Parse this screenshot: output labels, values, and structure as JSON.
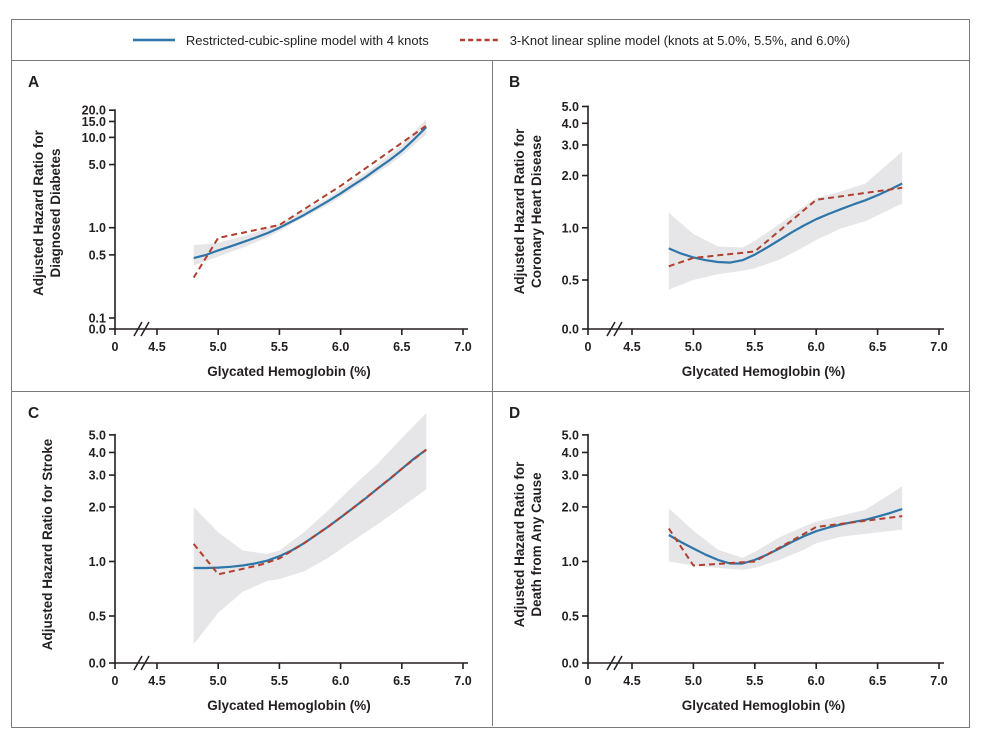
{
  "figure": {
    "legend": [
      {
        "label": "Restricted-cubic-spline model with 4 knots",
        "color": "#2e76a9",
        "style": "solid"
      },
      {
        "label": "3-Knot linear spline model (knots at 5.0%, 5.5%, and 6.0%)",
        "color": "#b2402f",
        "style": "dashed"
      }
    ],
    "colors": {
      "spline_blue": "#2e76a9",
      "spline_red": "#b2402f",
      "ci_band": "#e6e6e8",
      "axis": "#231f20",
      "frame": "#797a7c",
      "background": "#ffffff"
    }
  },
  "chart_data": [
    {
      "type": "line",
      "panel_label": "A",
      "ylabel_lines": [
        "Adjusted Hazard Ratio for",
        "Diagnosed Diabetes"
      ],
      "xlabel": "Glycated Hemoglobin (%)",
      "yscale": "log",
      "ylim": [
        0.1,
        28
      ],
      "x_axis_break": true,
      "yticks": [
        {
          "v": 20,
          "label": "20.0"
        },
        {
          "v": 15,
          "label": "15.0"
        },
        {
          "v": 10,
          "label": "10.0"
        },
        {
          "v": 5,
          "label": "5.0"
        },
        {
          "v": 1,
          "label": "1.0"
        },
        {
          "v": 0.5,
          "label": "0.5"
        },
        {
          "v": 0.1,
          "label": "0.1"
        },
        {
          "v": 0,
          "label": "0.0"
        }
      ],
      "xticks": [
        {
          "v": 0,
          "label": "0"
        },
        {
          "v": 4.5,
          "label": "4.5"
        },
        {
          "v": 5.0,
          "label": "5.0"
        },
        {
          "v": 5.5,
          "label": "5.5"
        },
        {
          "v": 6.0,
          "label": "6.0"
        },
        {
          "v": 6.5,
          "label": "6.5"
        },
        {
          "v": 7.0,
          "label": "7.0"
        }
      ],
      "series": [
        {
          "name": "Restricted-cubic-spline model with 4 knots",
          "style": "solid",
          "x": [
            4.8,
            4.9,
            5.0,
            5.1,
            5.2,
            5.3,
            5.4,
            5.5,
            5.6,
            5.7,
            5.8,
            5.9,
            6.0,
            6.1,
            6.2,
            6.3,
            6.4,
            6.5,
            6.6,
            6.7
          ],
          "y": [
            0.46,
            0.5,
            0.56,
            0.62,
            0.69,
            0.77,
            0.87,
            1.0,
            1.17,
            1.38,
            1.65,
            1.98,
            2.4,
            2.95,
            3.6,
            4.5,
            5.6,
            7.1,
            9.5,
            13.0
          ]
        },
        {
          "name": "3-Knot linear spline model",
          "style": "dashed",
          "x": [
            4.8,
            5.0,
            5.5,
            6.0,
            6.7
          ],
          "y": [
            0.28,
            0.77,
            1.07,
            2.9,
            13.5
          ]
        }
      ],
      "ci_band": {
        "x": [
          4.8,
          5.0,
          5.2,
          5.4,
          5.5,
          5.7,
          5.9,
          6.0,
          6.2,
          6.4,
          6.5,
          6.7
        ],
        "lower": [
          0.38,
          0.48,
          0.6,
          0.78,
          0.92,
          1.3,
          1.8,
          2.2,
          3.3,
          5.0,
          6.3,
          10.8
        ],
        "upper": [
          0.64,
          0.68,
          0.8,
          0.98,
          1.1,
          1.55,
          2.15,
          2.7,
          4.0,
          6.4,
          8.2,
          16.0
        ]
      }
    },
    {
      "type": "line",
      "panel_label": "B",
      "ylabel_lines": [
        "Adjusted Hazard Ratio for",
        "Coronary Heart Disease"
      ],
      "xlabel": "Glycated Hemoglobin (%)",
      "yscale": "log",
      "ylim": [
        0.5,
        5.9
      ],
      "x_axis_break": true,
      "yticks": [
        {
          "v": 5,
          "label": "5.0"
        },
        {
          "v": 4,
          "label": "4.0"
        },
        {
          "v": 3,
          "label": "3.0"
        },
        {
          "v": 2,
          "label": "2.0"
        },
        {
          "v": 1,
          "label": "1.0"
        },
        {
          "v": 0.5,
          "label": "0.5"
        },
        {
          "v": 0,
          "label": "0.0"
        }
      ],
      "xticks": [
        {
          "v": 0,
          "label": "0"
        },
        {
          "v": 4.5,
          "label": "4.5"
        },
        {
          "v": 5.0,
          "label": "5.0"
        },
        {
          "v": 5.5,
          "label": "5.5"
        },
        {
          "v": 6.0,
          "label": "6.0"
        },
        {
          "v": 6.5,
          "label": "6.5"
        },
        {
          "v": 7.0,
          "label": "7.0"
        }
      ],
      "series": [
        {
          "name": "Restricted-cubic-spline model with 4 knots",
          "style": "solid",
          "x": [
            4.8,
            4.9,
            5.0,
            5.1,
            5.2,
            5.3,
            5.4,
            5.5,
            5.6,
            5.7,
            5.8,
            5.9,
            6.0,
            6.1,
            6.2,
            6.3,
            6.4,
            6.5,
            6.6,
            6.7
          ],
          "y": [
            0.76,
            0.71,
            0.675,
            0.65,
            0.635,
            0.63,
            0.65,
            0.7,
            0.77,
            0.85,
            0.94,
            1.03,
            1.12,
            1.2,
            1.28,
            1.36,
            1.44,
            1.54,
            1.66,
            1.8
          ]
        },
        {
          "name": "3-Knot linear spline model",
          "style": "dashed",
          "x": [
            4.8,
            5.0,
            5.5,
            6.0,
            6.7
          ],
          "y": [
            0.6,
            0.67,
            0.73,
            1.45,
            1.7
          ]
        }
      ],
      "ci_band": {
        "x": [
          4.8,
          5.0,
          5.2,
          5.4,
          5.5,
          5.7,
          5.9,
          6.0,
          6.2,
          6.4,
          6.7
        ],
        "lower": [
          0.44,
          0.5,
          0.54,
          0.565,
          0.585,
          0.655,
          0.775,
          0.85,
          0.99,
          1.09,
          1.38
        ],
        "upper": [
          1.22,
          0.92,
          0.78,
          0.77,
          0.84,
          1.05,
          1.33,
          1.48,
          1.62,
          1.8,
          2.75
        ]
      }
    },
    {
      "type": "line",
      "panel_label": "C",
      "ylabel_lines": [
        "Adjusted Hazard Ratio for Stroke"
      ],
      "xlabel": "Glycated Hemoglobin (%)",
      "yscale": "log",
      "ylim": [
        0.5,
        5.6
      ],
      "x_axis_break": true,
      "yticks": [
        {
          "v": 5,
          "label": "5.0"
        },
        {
          "v": 4,
          "label": "4.0"
        },
        {
          "v": 3,
          "label": "3.0"
        },
        {
          "v": 2,
          "label": "2.0"
        },
        {
          "v": 1,
          "label": "1.0"
        },
        {
          "v": 0.5,
          "label": "0.5"
        },
        {
          "v": 0,
          "label": "0.0"
        }
      ],
      "xticks": [
        {
          "v": 0,
          "label": "0"
        },
        {
          "v": 4.5,
          "label": "4.5"
        },
        {
          "v": 5.0,
          "label": "5.0"
        },
        {
          "v": 5.5,
          "label": "5.5"
        },
        {
          "v": 6.0,
          "label": "6.0"
        },
        {
          "v": 6.5,
          "label": "6.5"
        },
        {
          "v": 7.0,
          "label": "7.0"
        }
      ],
      "series": [
        {
          "name": "Restricted-cubic-spline model with 4 knots",
          "style": "solid",
          "x": [
            4.8,
            4.9,
            5.0,
            5.1,
            5.2,
            5.3,
            5.4,
            5.5,
            5.6,
            5.7,
            5.8,
            5.9,
            6.0,
            6.1,
            6.2,
            6.3,
            6.4,
            6.5,
            6.6,
            6.7
          ],
          "y": [
            0.92,
            0.92,
            0.925,
            0.935,
            0.95,
            0.975,
            1.01,
            1.07,
            1.15,
            1.26,
            1.4,
            1.56,
            1.75,
            1.97,
            2.22,
            2.52,
            2.85,
            3.25,
            3.7,
            4.15
          ]
        },
        {
          "name": "3-Knot linear spline model",
          "style": "dashed",
          "x": [
            4.8,
            5.0,
            5.2,
            5.35,
            5.5,
            5.7,
            5.9,
            6.1,
            6.3,
            6.5,
            6.7
          ],
          "y": [
            1.25,
            0.85,
            0.91,
            0.96,
            1.04,
            1.26,
            1.56,
            1.97,
            2.52,
            3.25,
            4.15
          ]
        }
      ],
      "ci_band": {
        "x": [
          4.8,
          5.0,
          5.2,
          5.4,
          5.5,
          5.7,
          5.9,
          6.1,
          6.3,
          6.5,
          6.7
        ],
        "lower": [
          0.35,
          0.52,
          0.68,
          0.78,
          0.8,
          0.88,
          1.05,
          1.3,
          1.6,
          2.0,
          2.5
        ],
        "upper": [
          2.0,
          1.45,
          1.15,
          1.1,
          1.15,
          1.45,
          1.92,
          2.6,
          3.45,
          4.8,
          6.6
        ]
      }
    },
    {
      "type": "line",
      "panel_label": "D",
      "ylabel_lines": [
        "Adjusted Hazard Ratio for",
        "Death from Any Cause"
      ],
      "xlabel": "Glycated Hemoglobin (%)",
      "yscale": "log",
      "ylim": [
        0.5,
        5.6
      ],
      "x_axis_break": true,
      "yticks": [
        {
          "v": 5,
          "label": "5.0"
        },
        {
          "v": 4,
          "label": "4.0"
        },
        {
          "v": 3,
          "label": "3.0"
        },
        {
          "v": 2,
          "label": "2.0"
        },
        {
          "v": 1,
          "label": "1.0"
        },
        {
          "v": 0.5,
          "label": "0.5"
        },
        {
          "v": 0,
          "label": "0.0"
        }
      ],
      "xticks": [
        {
          "v": 0,
          "label": "0"
        },
        {
          "v": 4.5,
          "label": "4.5"
        },
        {
          "v": 5.0,
          "label": "5.0"
        },
        {
          "v": 5.5,
          "label": "5.5"
        },
        {
          "v": 6.0,
          "label": "6.0"
        },
        {
          "v": 6.5,
          "label": "6.5"
        },
        {
          "v": 7.0,
          "label": "7.0"
        }
      ],
      "series": [
        {
          "name": "Restricted-cubic-spline model with 4 knots",
          "style": "solid",
          "x": [
            4.8,
            4.9,
            5.0,
            5.1,
            5.2,
            5.3,
            5.4,
            5.5,
            5.6,
            5.7,
            5.8,
            5.9,
            6.0,
            6.1,
            6.2,
            6.3,
            6.4,
            6.5,
            6.6,
            6.7
          ],
          "y": [
            1.4,
            1.28,
            1.18,
            1.09,
            1.02,
            0.975,
            0.975,
            1.02,
            1.09,
            1.18,
            1.28,
            1.38,
            1.47,
            1.54,
            1.6,
            1.65,
            1.7,
            1.77,
            1.85,
            1.95
          ]
        },
        {
          "name": "3-Knot linear spline model",
          "style": "dashed",
          "x": [
            4.8,
            5.0,
            5.5,
            6.0,
            6.7
          ],
          "y": [
            1.52,
            0.95,
            1.0,
            1.55,
            1.78
          ]
        }
      ],
      "ci_band": {
        "x": [
          4.8,
          5.0,
          5.2,
          5.4,
          5.5,
          5.7,
          5.9,
          6.0,
          6.2,
          6.4,
          6.7
        ],
        "lower": [
          1.0,
          0.95,
          0.92,
          0.9,
          0.92,
          1.02,
          1.16,
          1.26,
          1.37,
          1.42,
          1.5
        ],
        "upper": [
          1.97,
          1.48,
          1.16,
          1.05,
          1.13,
          1.36,
          1.56,
          1.66,
          1.79,
          1.93,
          2.6
        ]
      }
    }
  ]
}
